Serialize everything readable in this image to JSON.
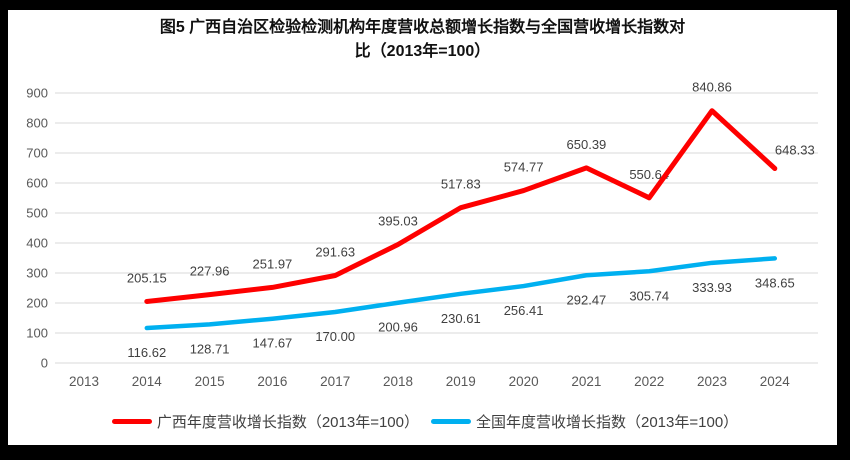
{
  "title": {
    "line1": "图5  广西自治区检验检测机构年度营收总额增长指数与全国营收增长指数对",
    "line2": "比（2013年=100）"
  },
  "chart_data": {
    "type": "line",
    "title": "图5 广西自治区检验检测机构年度营收总额增长指数与全国营收增长指数对比（2013年=100）",
    "categories": [
      "2013",
      "2014",
      "2015",
      "2016",
      "2017",
      "2018",
      "2019",
      "2020",
      "2021",
      "2022",
      "2023",
      "2024"
    ],
    "series": [
      {
        "name": "广西年度营收增长指数（2013年=100）",
        "color": "#FE0000",
        "start_index": 1,
        "label_position": "above",
        "values": [
          205.15,
          227.96,
          251.97,
          291.63,
          395.03,
          517.83,
          574.77,
          650.39,
          550.64,
          840.86,
          648.33
        ],
        "label_offsets": {
          "10": [
            20,
            5
          ]
        }
      },
      {
        "name": "全国年度营收增长指数（2013年=100）",
        "color": "#00B0F0",
        "start_index": 1,
        "label_position": "below",
        "values": [
          116.62,
          128.71,
          147.67,
          170.0,
          200.96,
          230.61,
          256.41,
          292.47,
          305.74,
          333.93,
          348.65
        ],
        "label_offsets": {}
      }
    ],
    "ylim": [
      0,
      900
    ],
    "yticks": [
      0,
      100,
      200,
      300,
      400,
      500,
      600,
      700,
      800,
      900
    ],
    "label_decimals": 2,
    "grid": true,
    "legend_position": "bottom",
    "colors": {
      "grid": "#D9D9D9",
      "tick_text": "#595959",
      "data_label_text": "#404040",
      "title_text": "#111111",
      "frame": "#000000"
    }
  }
}
